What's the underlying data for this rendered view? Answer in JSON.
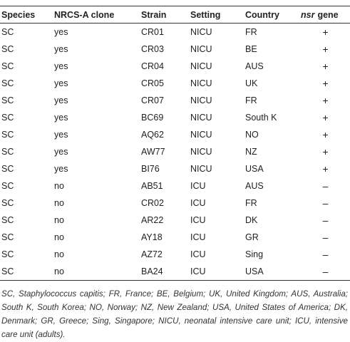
{
  "table": {
    "header": [
      "Species",
      "NRCS-A clone",
      "Strain",
      "Setting",
      "Country"
    ],
    "header_last": {
      "italic": "nsr",
      "plain": "gene"
    },
    "rows": [
      [
        "SC",
        "yes",
        "CR01",
        "NICU",
        "FR",
        "+"
      ],
      [
        "SC",
        "yes",
        "CR03",
        "NICU",
        "BE",
        "+"
      ],
      [
        "SC",
        "yes",
        "CR04",
        "NICU",
        "AUS",
        "+"
      ],
      [
        "SC",
        "yes",
        "CR05",
        "NICU",
        "UK",
        "+"
      ],
      [
        "SC",
        "yes",
        "CR07",
        "NICU",
        "FR",
        "+"
      ],
      [
        "SC",
        "yes",
        "BC69",
        "NICU",
        "South K",
        "+"
      ],
      [
        "SC",
        "yes",
        "AQ62",
        "NICU",
        "NO",
        "+"
      ],
      [
        "SC",
        "yes",
        "AW77",
        "NICU",
        "NZ",
        "+"
      ],
      [
        "SC",
        "yes",
        "BI76",
        "NICU",
        "USA",
        "+"
      ],
      [
        "SC",
        "no",
        "AB51",
        "ICU",
        "AUS",
        "–"
      ],
      [
        "SC",
        "no",
        "CR02",
        "ICU",
        "FR",
        "–"
      ],
      [
        "SC",
        "no",
        "AR22",
        "ICU",
        "DK",
        "–"
      ],
      [
        "SC",
        "no",
        "AY18",
        "ICU",
        "GR",
        "–"
      ],
      [
        "SC",
        "no",
        "AZ72",
        "ICU",
        "Sing",
        "–"
      ],
      [
        "SC",
        "no",
        "BA24",
        "ICU",
        "USA",
        "–"
      ]
    ],
    "footnote": "SC, Staphylococcus capitis; FR, France; BE, Belgium; UK, United Kingdom; AUS, Australia; South K, South Korea; NO, Norway; NZ, New Zealand; USA, United States of America; DK, Denmark; GR, Greece; Sing, Singapore; NICU, neonatal intensive care unit; ICU, intensive care unit (adults)."
  }
}
